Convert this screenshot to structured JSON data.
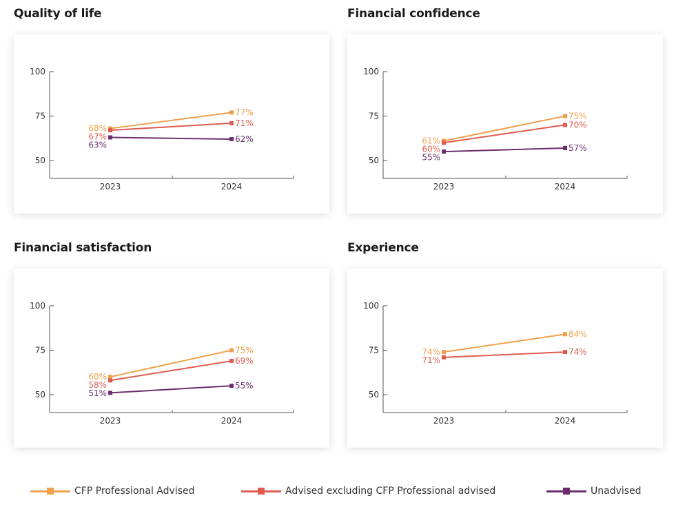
{
  "colors": {
    "cfp": "#f0a04b",
    "advised": "#e05b4f",
    "unadvised": "#6b2d6e",
    "axis": "#555555",
    "tick_text": "#333333"
  },
  "legend": [
    {
      "key": "cfp",
      "label": "CFP Professional Advised"
    },
    {
      "key": "advised",
      "label": "Advised excluding CFP Professional advised"
    },
    {
      "key": "unadvised",
      "label": "Unadvised"
    }
  ],
  "chart_data": [
    {
      "type": "line",
      "title": "Quality of life",
      "x": [
        "2023",
        "2024"
      ],
      "ylim": [
        40,
        100
      ],
      "yticks": [
        50,
        75,
        100
      ],
      "series": [
        {
          "key": "cfp",
          "name": "CFP Professional Advised",
          "values": [
            68,
            77
          ],
          "labels": [
            "68%",
            "77%"
          ]
        },
        {
          "key": "advised",
          "name": "Advised excluding CFP Professional advised",
          "values": [
            67,
            71
          ],
          "labels": [
            "67%",
            "71%"
          ]
        },
        {
          "key": "unadvised",
          "name": "Unadvised",
          "values": [
            63,
            62
          ],
          "labels": [
            "63%",
            "62%"
          ]
        }
      ]
    },
    {
      "type": "line",
      "title": "Financial confidence",
      "x": [
        "2023",
        "2024"
      ],
      "ylim": [
        40,
        100
      ],
      "yticks": [
        50,
        75,
        100
      ],
      "series": [
        {
          "key": "cfp",
          "name": "CFP Professional Advised",
          "values": [
            61,
            75
          ],
          "labels": [
            "61%",
            "75%"
          ]
        },
        {
          "key": "advised",
          "name": "Advised excluding CFP Professional advised",
          "values": [
            60,
            70
          ],
          "labels": [
            "60%",
            "70%"
          ]
        },
        {
          "key": "unadvised",
          "name": "Unadvised",
          "values": [
            55,
            57
          ],
          "labels": [
            "55%",
            "57%"
          ]
        }
      ]
    },
    {
      "type": "line",
      "title": "Financial satisfaction",
      "x": [
        "2023",
        "2024"
      ],
      "ylim": [
        40,
        100
      ],
      "yticks": [
        50,
        75,
        100
      ],
      "series": [
        {
          "key": "cfp",
          "name": "CFP Professional Advised",
          "values": [
            60,
            75
          ],
          "labels": [
            "60%",
            "75%"
          ]
        },
        {
          "key": "advised",
          "name": "Advised excluding CFP Professional advised",
          "values": [
            58,
            69
          ],
          "labels": [
            "58%",
            "69%"
          ]
        },
        {
          "key": "unadvised",
          "name": "Unadvised",
          "values": [
            51,
            55
          ],
          "labels": [
            "51%",
            "55%"
          ]
        }
      ]
    },
    {
      "type": "line",
      "title": "Experience",
      "x": [
        "2023",
        "2024"
      ],
      "ylim": [
        40,
        100
      ],
      "yticks": [
        50,
        75,
        100
      ],
      "series": [
        {
          "key": "cfp",
          "name": "CFP Professional Advised",
          "values": [
            74,
            84
          ],
          "labels": [
            "74%",
            "84%"
          ]
        },
        {
          "key": "advised",
          "name": "Advised excluding CFP Professional advised",
          "values": [
            71,
            74
          ],
          "labels": [
            "71%",
            "74%"
          ]
        }
      ]
    }
  ]
}
